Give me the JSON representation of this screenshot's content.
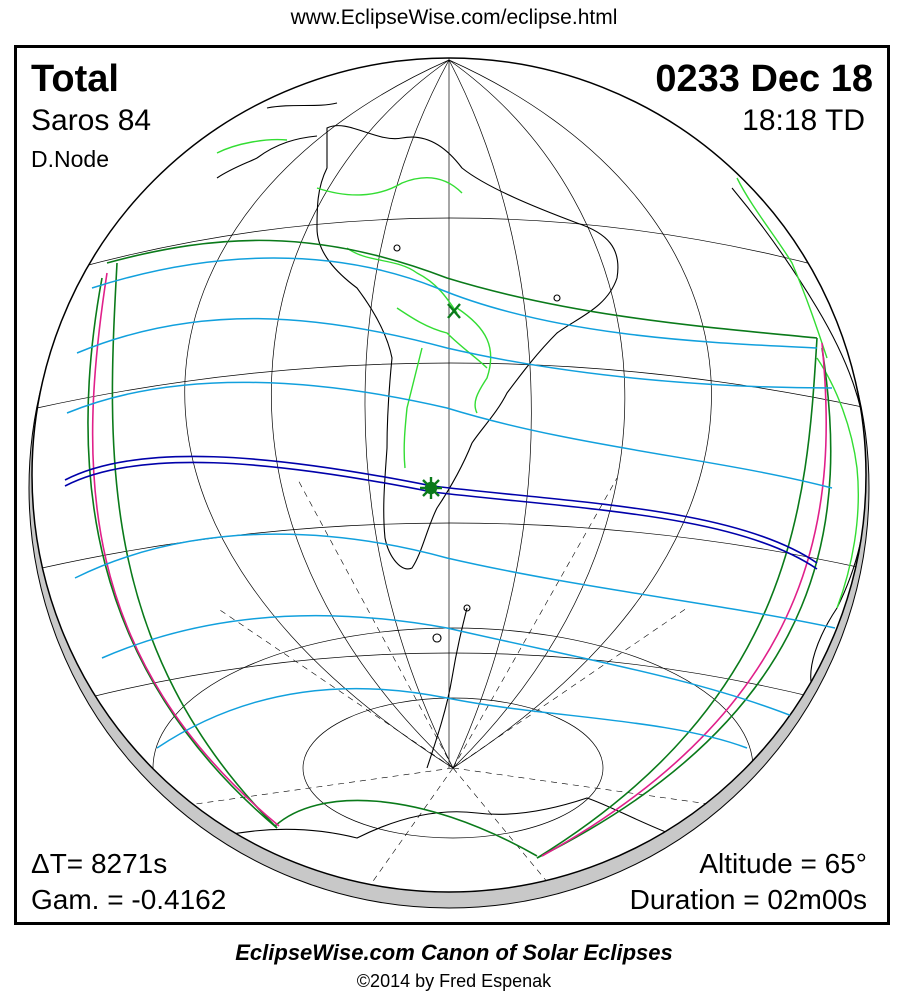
{
  "header": {
    "url": "www.EclipseWise.com/eclipse.html"
  },
  "eclipse": {
    "type": "Total",
    "saros": "Saros  84",
    "node": "D.Node",
    "date": "0233 Dec 18",
    "time": "18:18 TD",
    "delta_t": "ΔT=   8271s",
    "gamma": "Gam. = -0.4162",
    "altitude": "Altitude = 65°",
    "duration": "Duration = 02m00s"
  },
  "footer": {
    "canon": "EclipseWise.com Canon of Solar Eclipses",
    "copyright": "©2014 by Fred Espenak"
  },
  "colors": {
    "central_path": "#0000aa",
    "penumbral_lines": "#11a0dd",
    "penumbral_limits": "#0a7a1a",
    "rise_set_curves": "#e0208a",
    "borders": "#33dd33",
    "greatest_eclipse_marker": "#0a7a1a",
    "shadow": "#c8c8c8"
  },
  "markers": {
    "greatest_eclipse": "green-star-icon",
    "sub_solar_point": "green-x-icon"
  }
}
